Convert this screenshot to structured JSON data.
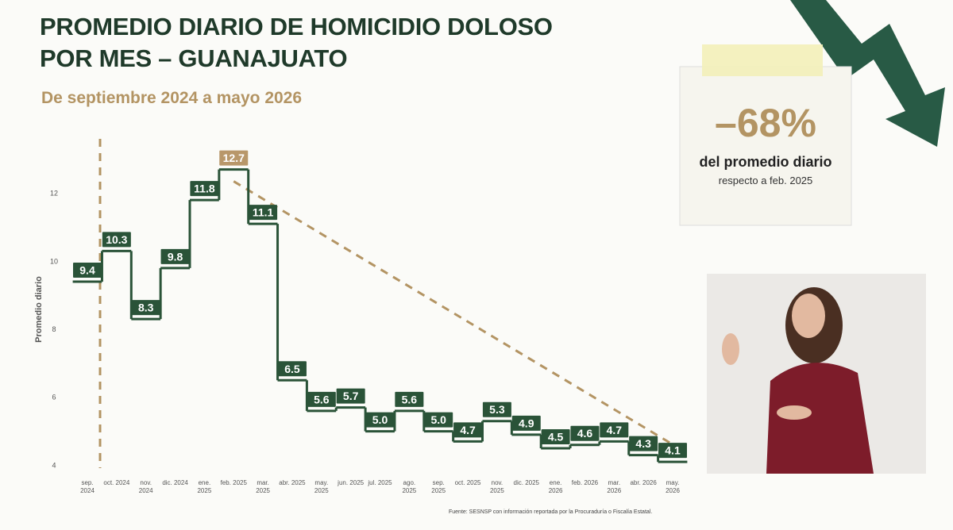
{
  "chart_data": {
    "type": "step",
    "title": "PROMEDIO DIARIO DE HOMICIDIO DOLOSO POR MES – GUANAJUATO",
    "subtitle": "De septiembre 2024 a mayo 2026",
    "y_label": "Promedio diario",
    "categories": [
      "sep. 2024",
      "oct. 2024",
      "nov. 2024",
      "dic. 2024",
      "ene. 2025",
      "feb. 2025",
      "mar. 2025",
      "abr. 2025",
      "may. 2025",
      "jun. 2025",
      "jul. 2025",
      "ago. 2025",
      "sep. 2025",
      "oct. 2025",
      "nov. 2025",
      "dic. 2025",
      "ene. 2026",
      "feb. 2026",
      "mar. 2026",
      "abr. 2026",
      "may. 2026"
    ],
    "values": [
      9.4,
      10.3,
      8.3,
      9.8,
      11.8,
      12.7,
      11.1,
      6.5,
      5.6,
      5.7,
      5.0,
      5.6,
      5.0,
      4.7,
      5.3,
      4.9,
      4.5,
      4.6,
      4.7,
      4.3,
      4.1
    ],
    "value_labels": [
      "9.4",
      "10.3",
      "8.3",
      "9.8",
      "11.8",
      "12.7",
      "11.1",
      "6.5",
      "5.6",
      "5.7",
      "5.0",
      "5.6",
      "5.0",
      "4.7",
      "5.3",
      "4.9",
      "4.5",
      "4.6",
      "4.7",
      "4.3",
      "4.1"
    ],
    "color": "#2a5338",
    "highlight_color": "#b8976a",
    "ylim": [
      3.8,
      13.6
    ],
    "yticks": [
      4,
      6,
      8,
      10,
      12
    ],
    "annotation": {
      "value": "–68%",
      "text": "del promedio diario",
      "subtext": "respecto a feb. 2025"
    },
    "source": "Fuente: SESNSP con información reportada por la Procuraduría o Fiscalía Estatal."
  }
}
